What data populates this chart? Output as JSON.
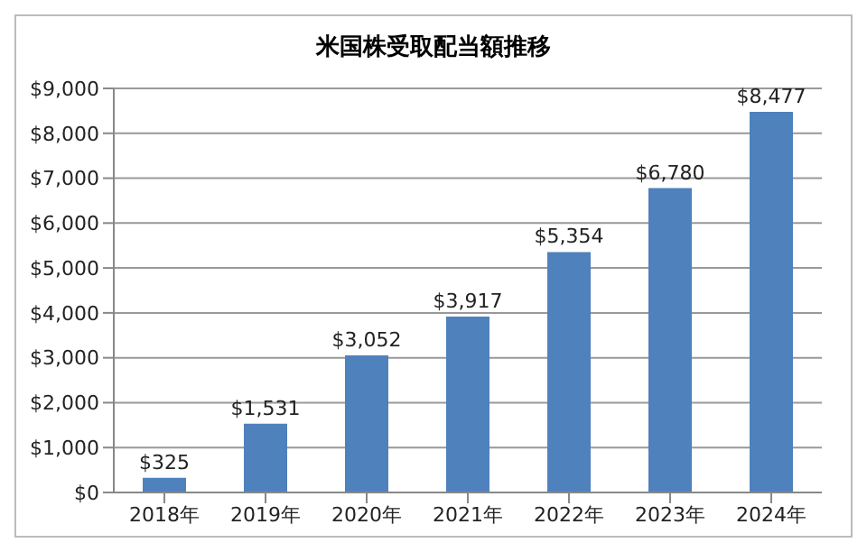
{
  "chart_data": {
    "type": "bar",
    "title": "米国株受取配当額推移",
    "categories": [
      "2018年",
      "2019年",
      "2020年",
      "2021年",
      "2022年",
      "2023年",
      "2024年"
    ],
    "values": [
      325,
      1531,
      3052,
      3917,
      5354,
      6780,
      8477
    ],
    "value_labels": [
      "$325",
      "$1,531",
      "$3,052",
      "$3,917",
      "$5,354",
      "$6,780",
      "$8,477"
    ],
    "color": "#4f81bd",
    "ylim": [
      0,
      9000
    ],
    "yticks": [
      {
        "value": 0,
        "label": "$0"
      },
      {
        "value": 1000,
        "label": "$1,000"
      },
      {
        "value": 2000,
        "label": "$2,000"
      },
      {
        "value": 3000,
        "label": "$3,000"
      },
      {
        "value": 4000,
        "label": "$4,000"
      },
      {
        "value": 5000,
        "label": "$5,000"
      },
      {
        "value": 6000,
        "label": "$6,000"
      },
      {
        "value": 7000,
        "label": "$7,000"
      },
      {
        "value": 8000,
        "label": "$8,000"
      },
      {
        "value": 9000,
        "label": "$9,000"
      }
    ],
    "grid": "y",
    "legend": false
  }
}
